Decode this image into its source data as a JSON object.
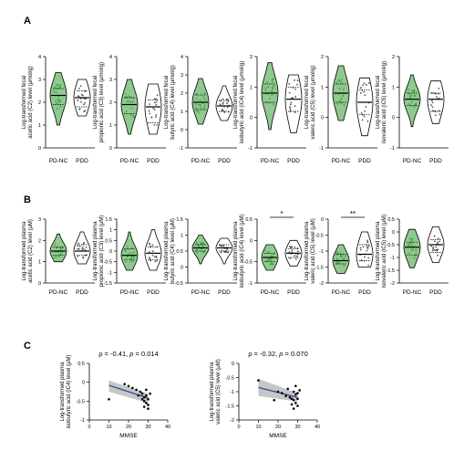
{
  "panels": {
    "a": "A",
    "b": "B",
    "c": "C"
  },
  "colors": {
    "pdnc": "#8fc98f",
    "pdnc_dots": "#3f9a3f",
    "pdd": "#ffffff",
    "line": "#2a4f9e",
    "band": "#b8b8b8"
  },
  "chart_data": [
    {
      "type": "violin",
      "panel": "A",
      "ylabel": [
        "Log-transformed fecal",
        "acetic acid (C2) level (μmol/g)"
      ],
      "ylim": [
        0,
        4
      ],
      "yticks": [
        0,
        1,
        2,
        3,
        4
      ],
      "categories": [
        "PD-NC",
        "PDD"
      ],
      "series": [
        {
          "name": "PD-NC",
          "median": 2.3,
          "q1": 1.9,
          "q3": 2.6,
          "min": 1.0,
          "max": 3.3
        },
        {
          "name": "PDD",
          "median": 2.2,
          "q1": 1.8,
          "q3": 2.5,
          "min": 1.4,
          "max": 3.0
        }
      ]
    },
    {
      "type": "violin",
      "panel": "A",
      "ylabel": [
        "Log-transformed fecal",
        "propionic acid (C3) level (μmol/g)"
      ],
      "ylim": [
        0,
        4
      ],
      "yticks": [
        0,
        1,
        2,
        3,
        4
      ],
      "categories": [
        "PD-NC",
        "PDD"
      ],
      "series": [
        {
          "name": "PD-NC",
          "median": 1.9,
          "q1": 1.5,
          "q3": 2.2,
          "min": 0.6,
          "max": 3.0
        },
        {
          "name": "PDD",
          "median": 1.8,
          "q1": 1.1,
          "q3": 2.1,
          "min": 0.6,
          "max": 2.8
        }
      ]
    },
    {
      "type": "violin",
      "panel": "A",
      "ylabel": [
        "Log-transformed fecal",
        "butyric acid (C4) level (μmol/g)"
      ],
      "ylim": [
        -1,
        4
      ],
      "yticks": [
        -1,
        0,
        1,
        2,
        3,
        4
      ],
      "categories": [
        "PD-NC",
        "PDD"
      ],
      "series": [
        {
          "name": "PD-NC",
          "median": 1.5,
          "q1": 1.1,
          "q3": 1.9,
          "min": 0.3,
          "max": 2.8
        },
        {
          "name": "PDD",
          "median": 1.3,
          "q1": 1.0,
          "q3": 1.6,
          "min": 0.5,
          "max": 2.4
        }
      ]
    },
    {
      "type": "violin",
      "panel": "A",
      "ylabel": [
        "Log-transformed fecal",
        "isobutyric acid (iC4) level (μmol/g)"
      ],
      "ylim": [
        -1,
        2
      ],
      "yticks": [
        -1,
        0,
        1,
        2
      ],
      "categories": [
        "PD-NC",
        "PDD"
      ],
      "series": [
        {
          "name": "PD-NC",
          "median": 0.8,
          "q1": 0.5,
          "q3": 1.1,
          "min": -0.4,
          "max": 1.8
        },
        {
          "name": "PDD",
          "median": 0.6,
          "q1": 0.2,
          "q3": 1.0,
          "min": -0.5,
          "max": 1.4
        }
      ]
    },
    {
      "type": "violin",
      "panel": "A",
      "ylabel": [
        "Log-transformed fecal",
        "valeric acid (C5) level (μmol/g)"
      ],
      "ylim": [
        -1,
        2
      ],
      "yticks": [
        -1,
        0,
        1,
        2
      ],
      "categories": [
        "PD-NC",
        "PDD"
      ],
      "series": [
        {
          "name": "PD-NC",
          "median": 0.8,
          "q1": 0.5,
          "q3": 1.1,
          "min": -0.1,
          "max": 1.7
        },
        {
          "name": "PDD",
          "median": 0.5,
          "q1": 0.1,
          "q3": 0.9,
          "min": -0.6,
          "max": 1.3
        }
      ]
    },
    {
      "type": "violin",
      "panel": "A",
      "ylabel": [
        "Log-transformed fecal",
        "isovaleric acid (iC5) level (μmol/g)"
      ],
      "ylim": [
        -1,
        2
      ],
      "yticks": [
        -1,
        0,
        1,
        2
      ],
      "categories": [
        "PD-NC",
        "PDD"
      ],
      "series": [
        {
          "name": "PD-NC",
          "median": 0.6,
          "q1": 0.4,
          "q3": 0.8,
          "min": -0.3,
          "max": 1.4
        },
        {
          "name": "PDD",
          "median": 0.6,
          "q1": 0.2,
          "q3": 0.8,
          "min": -0.2,
          "max": 1.2
        }
      ]
    },
    {
      "type": "violin",
      "panel": "B",
      "ylabel": [
        "Log-transformed plasma",
        "acetic acid (C2) level (μM)"
      ],
      "ylim": [
        0,
        3
      ],
      "yticks": [
        0,
        1,
        2,
        3
      ],
      "categories": [
        "PD-NC",
        "PDD"
      ],
      "series": [
        {
          "name": "PD-NC",
          "median": 1.5,
          "q1": 1.3,
          "q3": 1.7,
          "min": 1.0,
          "max": 2.3
        },
        {
          "name": "PDD",
          "median": 1.5,
          "q1": 1.3,
          "q3": 1.8,
          "min": 0.9,
          "max": 2.4
        }
      ]
    },
    {
      "type": "violin",
      "panel": "B",
      "ylabel": [
        "Log-transformed plasma",
        "propionic acid (C3) level (μM)"
      ],
      "ylim": [
        -1.5,
        1.5
      ],
      "yticks": [
        -1.5,
        -1.0,
        -0.5,
        0.0,
        0.5,
        1.0,
        1.5
      ],
      "categories": [
        "PD-NC",
        "PDD"
      ],
      "series": [
        {
          "name": "PD-NC",
          "median": -0.2,
          "q1": -0.4,
          "q3": 0.1,
          "min": -0.9,
          "max": 0.9
        },
        {
          "name": "PDD",
          "median": -0.1,
          "q1": -0.4,
          "q3": 0.2,
          "min": -0.9,
          "max": 1.0
        }
      ]
    },
    {
      "type": "violin",
      "panel": "B",
      "ylabel": [
        "Log-transformed plasma",
        "butyric acid (C4) level (μM)"
      ],
      "ylim": [
        -0.5,
        1.5
      ],
      "yticks": [
        -0.5,
        0.0,
        0.5,
        1.0,
        1.5
      ],
      "categories": [
        "PD-NC",
        "PDD"
      ],
      "series": [
        {
          "name": "PD-NC",
          "median": 0.6,
          "q1": 0.5,
          "q3": 0.7,
          "min": 0.1,
          "max": 1.0
        },
        {
          "name": "PDD",
          "median": 0.6,
          "q1": 0.5,
          "q3": 0.7,
          "min": 0.1,
          "max": 0.9
        }
      ]
    },
    {
      "type": "violin",
      "panel": "B",
      "ylabel": [
        "Log-transformed plasma",
        "isobutyric acid (iC4) level (μM)"
      ],
      "ylim": [
        -1.0,
        0.5
      ],
      "yticks": [
        -1.0,
        -0.5,
        0.0,
        0.5
      ],
      "categories": [
        "PD-NC",
        "PDD"
      ],
      "significance": "*",
      "series": [
        {
          "name": "PD-NC",
          "median": -0.4,
          "q1": -0.5,
          "q3": -0.3,
          "min": -0.7,
          "max": -0.1
        },
        {
          "name": "PDD",
          "median": -0.3,
          "q1": -0.4,
          "q3": -0.2,
          "min": -0.6,
          "max": 0.0
        }
      ]
    },
    {
      "type": "violin",
      "panel": "B",
      "ylabel": [
        "Log-transformed plasma",
        "valeric acid (C5) level (μM)"
      ],
      "ylim": [
        -2.0,
        0.0
      ],
      "yticks": [
        -2.0,
        -1.5,
        -1.0,
        -0.5,
        0.0
      ],
      "categories": [
        "PD-NC",
        "PDD"
      ],
      "significance": "**",
      "series": [
        {
          "name": "PD-NC",
          "median": -1.3,
          "q1": -1.4,
          "q3": -1.1,
          "min": -1.7,
          "max": -0.8
        },
        {
          "name": "PDD",
          "median": -1.1,
          "q1": -1.3,
          "q3": -0.8,
          "min": -1.5,
          "max": -0.4
        }
      ]
    },
    {
      "type": "violin",
      "panel": "B",
      "ylabel": [
        "Log-transformed plasma",
        "isovaleric acid (iC5) level (μM)"
      ],
      "ylim": [
        -2.0,
        0.5
      ],
      "yticks": [
        -2.0,
        -1.5,
        -1.0,
        -0.5,
        0.0,
        0.5
      ],
      "categories": [
        "PD-NC",
        "PDD"
      ],
      "series": [
        {
          "name": "PD-NC",
          "median": -0.6,
          "q1": -0.9,
          "q3": -0.4,
          "min": -1.4,
          "max": 0.1
        },
        {
          "name": "PDD",
          "median": -0.5,
          "q1": -0.8,
          "q3": -0.3,
          "min": -1.2,
          "max": 0.2
        }
      ]
    },
    {
      "type": "scatter",
      "panel": "C",
      "title": "ρ = -0.41, p = 0.014",
      "title_parts": [
        "ρ = -0.41, ",
        "p",
        " = 0.014"
      ],
      "xlabel": "MMSE",
      "ylabel": [
        "Log-transformed plasma",
        "isobutyric acid (iC4) level (μM)"
      ],
      "xlim": [
        0,
        40
      ],
      "ylim": [
        -1.0,
        0.5
      ],
      "xticks": [
        0,
        10,
        20,
        30,
        40
      ],
      "yticks": [
        -1.0,
        -0.5,
        0.0,
        0.5
      ],
      "fit": {
        "x": [
          10,
          30
        ],
        "y": [
          -0.08,
          -0.42
        ],
        "band_lo": [
          -0.25,
          -0.55
        ],
        "band_hi": [
          0.05,
          -0.3
        ]
      },
      "points": [
        [
          10,
          -0.45
        ],
        [
          18,
          -0.05
        ],
        [
          20,
          -0.1
        ],
        [
          22,
          -0.15
        ],
        [
          24,
          -0.2
        ],
        [
          25,
          -0.35
        ],
        [
          26,
          -0.25
        ],
        [
          27,
          -0.3
        ],
        [
          28,
          -0.4
        ],
        [
          28,
          -0.5
        ],
        [
          29,
          -0.35
        ],
        [
          29,
          -0.55
        ],
        [
          30,
          -0.6
        ],
        [
          30,
          -0.45
        ],
        [
          31,
          -0.3
        ],
        [
          29,
          -0.2
        ],
        [
          27,
          -0.45
        ],
        [
          28,
          -0.65
        ],
        [
          30,
          -0.7
        ]
      ]
    },
    {
      "type": "scatter",
      "panel": "C",
      "title": "ρ = -0.32, p = 0.070",
      "title_parts": [
        "ρ = -0.32, ",
        "p",
        " = 0.070"
      ],
      "xlabel": "MMSE",
      "ylabel": [
        "Log-transformed plasma",
        "valeric acid (C5) level (μM)"
      ],
      "xlim": [
        0,
        40
      ],
      "ylim": [
        -2.0,
        0.0
      ],
      "xticks": [
        0,
        10,
        20,
        30,
        40
      ],
      "yticks": [
        -2.0,
        -1.5,
        -1.0,
        -0.5,
        0.0
      ],
      "fit": {
        "x": [
          10,
          30
        ],
        "y": [
          -0.85,
          -1.2
        ],
        "band_lo": [
          -1.15,
          -1.35
        ],
        "band_hi": [
          -0.55,
          -1.05
        ]
      },
      "points": [
        [
          10,
          -0.6
        ],
        [
          18,
          -1.3
        ],
        [
          20,
          -1.0
        ],
        [
          22,
          -1.05
        ],
        [
          24,
          -1.15
        ],
        [
          25,
          -0.9
        ],
        [
          26,
          -1.2
        ],
        [
          27,
          -1.25
        ],
        [
          28,
          -1.3
        ],
        [
          28,
          -1.0
        ],
        [
          29,
          -1.4
        ],
        [
          29,
          -1.1
        ],
        [
          30,
          -1.5
        ],
        [
          30,
          -1.25
        ],
        [
          31,
          -0.95
        ],
        [
          27,
          -1.45
        ],
        [
          28,
          -1.6
        ],
        [
          30,
          -1.05
        ],
        [
          29,
          -0.8
        ]
      ]
    }
  ]
}
